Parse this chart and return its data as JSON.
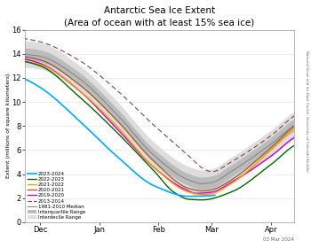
{
  "title_line1": "Antarctic Sea Ice Extent",
  "title_line2": "(Area of ocean with at least 15% sea ice)",
  "ylabel": "Extent (millions of square kilometers)",
  "ylim": [
    0,
    16
  ],
  "yticks": [
    0,
    2,
    4,
    6,
    8,
    10,
    12,
    14,
    16
  ],
  "credit_text": "National Snow and Ice Data Center, University of Colorado Boulder",
  "date_text": "03 Mar 2024",
  "colors": {
    "2023-2024": "#00aaff",
    "2022-2023": "#006600",
    "2021-2022": "#ff9900",
    "2020-2021": "#996633",
    "2019-2020": "#cc00cc",
    "2013-2014": "#884444",
    "median": "#888888",
    "interquartile": "#bbbbbb",
    "interdecile": "#dddddd"
  },
  "bg_color": "#ffffff"
}
